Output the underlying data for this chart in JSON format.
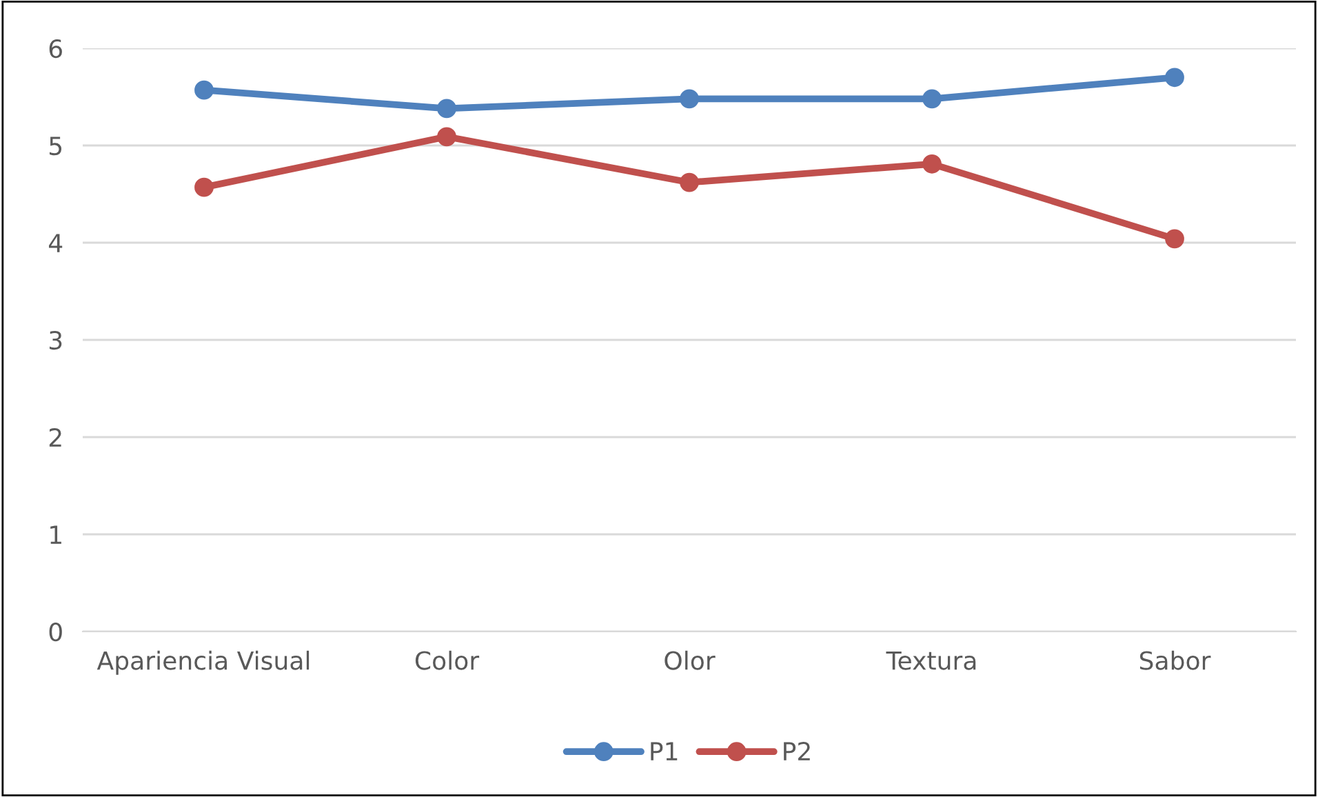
{
  "chart_data": {
    "type": "line",
    "categories": [
      "Apariencia Visual",
      "Color",
      "Olor",
      "Textura",
      "Sabor"
    ],
    "series": [
      {
        "name": "P1",
        "color": "#4f81bd",
        "values": [
          5.57,
          5.38,
          5.48,
          5.48,
          5.7
        ]
      },
      {
        "name": "P2",
        "color": "#c0504d",
        "values": [
          4.57,
          5.09,
          4.62,
          4.81,
          4.04
        ]
      }
    ],
    "ylim": [
      0,
      6
    ],
    "yticks": [
      0,
      1,
      2,
      3,
      4,
      5,
      6
    ],
    "grid": "y",
    "legend": "bottom",
    "marker": "circle",
    "line_style": "solid"
  }
}
